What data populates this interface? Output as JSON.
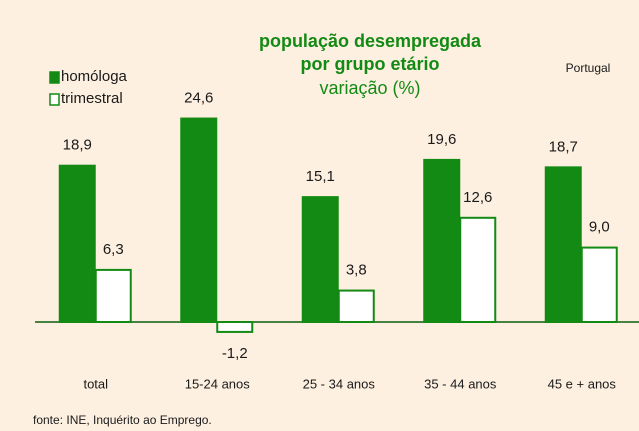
{
  "chart_data": {
    "type": "bar",
    "title": [
      "população desempregada",
      "por grupo etário"
    ],
    "subtitle": "variação (%)",
    "annotation": "Portugal",
    "source": "fonte: INE, Inquérito ao Emprego.",
    "categories": [
      "total",
      "15-24 anos",
      "25 - 34 anos",
      "35 - 44 anos",
      "45 e + anos"
    ],
    "series": [
      {
        "name": "homóloga",
        "color": "#138a13",
        "fill": true,
        "values": [
          18.9,
          24.6,
          15.1,
          19.6,
          18.7
        ],
        "value_labels": [
          "18,9",
          "24,6",
          "15,1",
          "19,6",
          "18,7"
        ]
      },
      {
        "name": "trimestral",
        "color": "#138a13",
        "fill": false,
        "values": [
          6.3,
          -1.2,
          3.8,
          12.6,
          9.0
        ],
        "value_labels": [
          "6,3",
          "-1,2",
          "3,8",
          "12,6",
          "9,0"
        ]
      }
    ]
  }
}
